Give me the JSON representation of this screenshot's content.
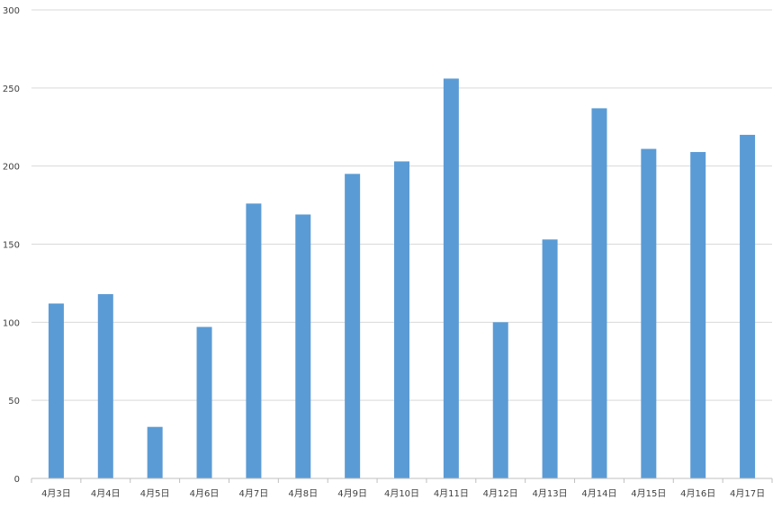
{
  "chart_data": {
    "type": "bar",
    "title": "",
    "xlabel": "",
    "ylabel": "",
    "ylim": [
      0,
      300
    ],
    "yticks": [
      0,
      50,
      100,
      150,
      200,
      250,
      300
    ],
    "grid": true,
    "legend": "none",
    "bar_color": "#5b9bd5",
    "grid_color": "#d9d9d9",
    "axis_color": "#bfbfbf",
    "label_color": "#404040",
    "categories": [
      "4月3日",
      "4月4日",
      "4月5日",
      "4月6日",
      "4月7日",
      "4月8日",
      "4月9日",
      "4月10日",
      "4月11日",
      "4月12日",
      "4月13日",
      "4月14日",
      "4月15日",
      "4月16日",
      "4月17日"
    ],
    "values": [
      112,
      118,
      33,
      97,
      176,
      169,
      195,
      203,
      256,
      100,
      153,
      237,
      211,
      209,
      220
    ]
  }
}
